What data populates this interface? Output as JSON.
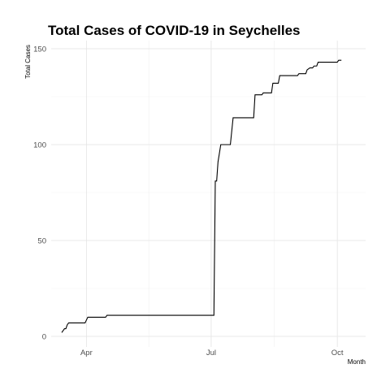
{
  "chart_data": {
    "type": "line",
    "title": "Total Cases of COVID-19 in Seychelles",
    "xlabel": "Month",
    "ylabel": "Total Cases",
    "grid": true,
    "legend": "none",
    "line_color": "#000000",
    "xlim": [
      "2020-03-14",
      "2020-10-11"
    ],
    "ylim": [
      0,
      150
    ],
    "x_ticks": [
      {
        "date": "2020-04-01",
        "label": "Apr"
      },
      {
        "date": "2020-07-01",
        "label": "Jul"
      },
      {
        "date": "2020-10-01",
        "label": "Oct"
      }
    ],
    "y_ticks": [
      0,
      50,
      100,
      150
    ],
    "series": [
      {
        "points": [
          [
            "2020-03-14",
            2
          ],
          [
            "2020-03-16",
            4
          ],
          [
            "2020-03-17",
            4
          ],
          [
            "2020-03-18",
            6
          ],
          [
            "2020-03-19",
            7
          ],
          [
            "2020-03-31",
            7
          ],
          [
            "2020-04-02",
            10
          ],
          [
            "2020-04-15",
            10
          ],
          [
            "2020-04-16",
            11
          ],
          [
            "2020-07-03",
            11
          ],
          [
            "2020-07-04",
            81
          ],
          [
            "2020-07-05",
            81
          ],
          [
            "2020-07-06",
            91
          ],
          [
            "2020-07-08",
            100
          ],
          [
            "2020-07-15",
            100
          ],
          [
            "2020-07-17",
            114
          ],
          [
            "2020-08-01",
            114
          ],
          [
            "2020-08-02",
            126
          ],
          [
            "2020-08-07",
            126
          ],
          [
            "2020-08-08",
            127
          ],
          [
            "2020-08-14",
            127
          ],
          [
            "2020-08-15",
            132
          ],
          [
            "2020-08-19",
            132
          ],
          [
            "2020-08-20",
            136
          ],
          [
            "2020-09-02",
            136
          ],
          [
            "2020-09-03",
            137
          ],
          [
            "2020-09-08",
            137
          ],
          [
            "2020-09-09",
            139
          ],
          [
            "2020-09-11",
            140
          ],
          [
            "2020-09-13",
            140
          ],
          [
            "2020-09-14",
            141
          ],
          [
            "2020-09-16",
            141
          ],
          [
            "2020-09-17",
            143
          ],
          [
            "2020-10-01",
            143
          ],
          [
            "2020-10-02",
            144
          ],
          [
            "2020-10-04",
            144
          ]
        ]
      }
    ]
  }
}
